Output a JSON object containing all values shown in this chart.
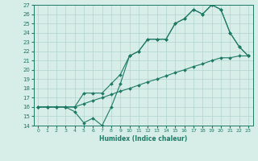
{
  "xlabel": "Humidex (Indice chaleur)",
  "xlim": [
    -0.5,
    23.5
  ],
  "ylim": [
    14,
    27
  ],
  "xticks": [
    0,
    1,
    2,
    3,
    4,
    5,
    6,
    7,
    8,
    9,
    10,
    11,
    12,
    13,
    14,
    15,
    16,
    17,
    18,
    19,
    20,
    21,
    22,
    23
  ],
  "yticks": [
    14,
    15,
    16,
    17,
    18,
    19,
    20,
    21,
    22,
    23,
    24,
    25,
    26,
    27
  ],
  "bg_color": "#d6ede8",
  "line_color": "#1e7a65",
  "grid_color": "#b0d4cc",
  "line1_x": [
    0,
    1,
    2,
    3,
    4,
    5,
    6,
    7,
    8,
    9,
    10,
    11,
    12,
    13,
    14,
    15,
    16,
    17,
    18,
    19,
    20,
    21,
    22,
    23
  ],
  "line1_y": [
    16.0,
    16.0,
    16.0,
    16.0,
    16.0,
    16.35,
    16.7,
    17.0,
    17.35,
    17.7,
    18.0,
    18.35,
    18.7,
    19.0,
    19.35,
    19.7,
    20.0,
    20.35,
    20.65,
    21.0,
    21.3,
    21.3,
    21.5,
    21.5
  ],
  "line2_x": [
    0,
    1,
    2,
    3,
    4,
    5,
    6,
    7,
    8,
    9,
    10,
    11,
    12,
    13,
    14,
    15,
    16,
    17,
    18,
    19,
    20,
    21,
    22,
    23
  ],
  "line2_y": [
    16.0,
    16.0,
    16.0,
    16.0,
    16.0,
    17.5,
    17.5,
    17.5,
    18.5,
    19.5,
    21.5,
    22.0,
    23.3,
    23.3,
    23.3,
    25.0,
    25.5,
    26.5,
    26.0,
    27.0,
    26.5,
    24.0,
    22.5,
    21.5
  ],
  "line3_x": [
    0,
    1,
    2,
    3,
    4,
    5,
    6,
    7,
    8,
    9,
    10,
    11,
    12,
    13,
    14,
    15,
    16,
    17,
    18,
    19,
    20,
    21,
    22,
    23
  ],
  "line3_y": [
    16.0,
    16.0,
    16.0,
    16.0,
    15.5,
    14.3,
    14.8,
    14.0,
    16.0,
    18.5,
    21.5,
    22.0,
    23.3,
    23.3,
    23.3,
    25.0,
    25.5,
    26.5,
    26.0,
    27.0,
    26.5,
    24.0,
    22.5,
    21.5
  ]
}
